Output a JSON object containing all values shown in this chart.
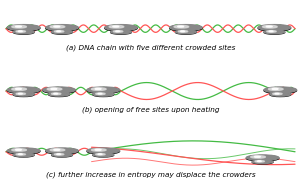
{
  "background_color": "#ffffff",
  "dna_green": "#44bb44",
  "dna_pink": "#ff5555",
  "crowder_dark": "#111111",
  "crowder_light": "#cccccc",
  "text_color": "#000000",
  "label_a": "(a) DNA chain with five different crowded sites",
  "label_b": "(b) opening of free sites upon heating",
  "label_c": "(c) further increase in entropy may displace the crowders",
  "label_fontsize": 5.2,
  "fig_width": 3.01,
  "fig_height": 1.89,
  "dpi": 100,
  "helix_amp": 0.07,
  "helix_freq_tight": 12,
  "helix_freq_open": 2,
  "lw": 0.9
}
